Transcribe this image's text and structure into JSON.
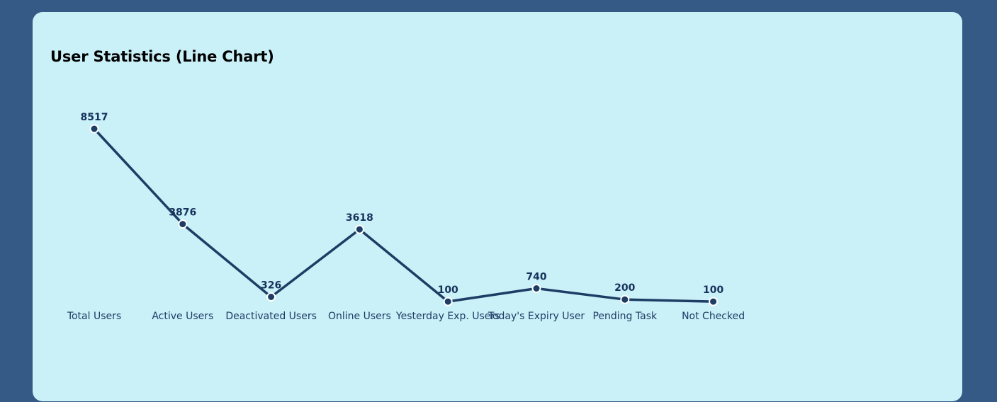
{
  "card": {
    "title": "User Statistics (Line Chart)"
  },
  "colors": {
    "page_background": "#355a86",
    "card_background": "#caf0f8",
    "line": "#1d3d64",
    "point_fill": "#1d3d64",
    "point_stroke": "#ffffff",
    "data_label": "#16325a",
    "tick_label": "#1d3d64"
  },
  "chart_data": {
    "type": "line",
    "title": "User Statistics (Line Chart)",
    "categories": [
      "Total Users",
      "Active Users",
      "Deactivated Users",
      "Online Users",
      "Yesterday Exp. Users",
      "Today's Expiry User",
      "Pending Task",
      "Not Checked"
    ],
    "series": [
      {
        "values": [
          8517,
          3876,
          326,
          3618,
          100,
          740,
          200,
          100
        ]
      }
    ],
    "data_labels": true,
    "grid": false,
    "legend": "none",
    "xlabel": "",
    "ylabel": ""
  }
}
